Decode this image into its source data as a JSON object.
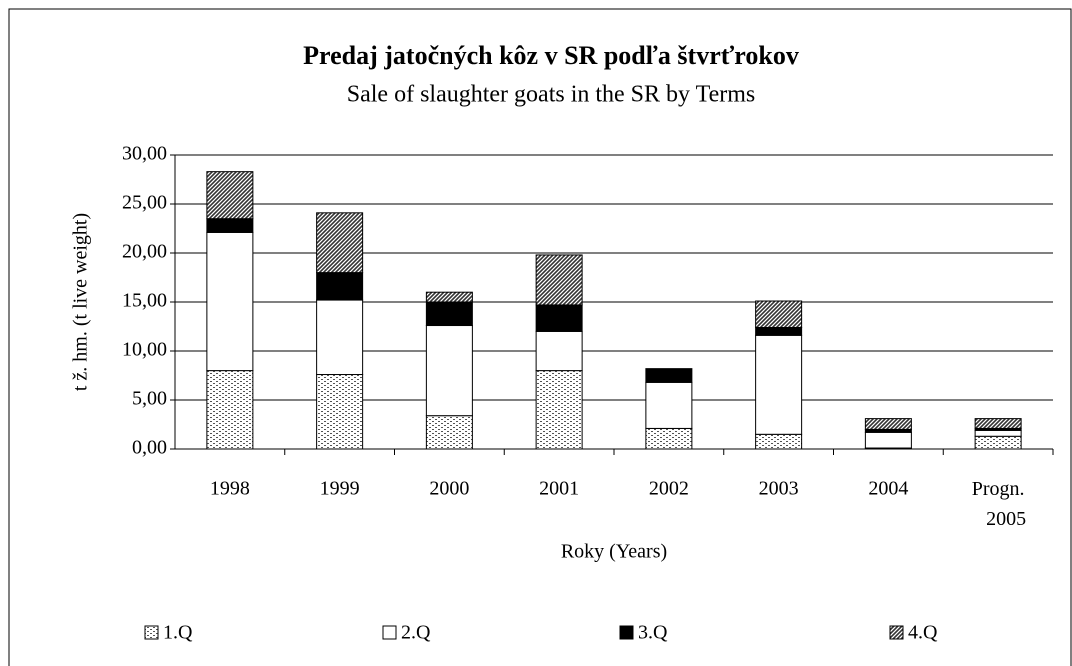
{
  "chart_data": {
    "type": "stacked_bar",
    "title": "Predaj jatočných kôz v SR podľa štvrťrokov",
    "subtitle": "Sale of slaughter goats in the SR by Terms",
    "x_label": "Roky (Years)",
    "y_label": "t ž. hm. (t live weight)",
    "categories": [
      "1998",
      "1999",
      "2000",
      "2001",
      "2002",
      "2003",
      "2004",
      "Progn. 2005"
    ],
    "series": [
      {
        "name": "1.Q",
        "color": "#ffffff",
        "pattern": "dots",
        "values": [
          8.0,
          7.6,
          3.4,
          8.0,
          2.1,
          1.5,
          0.1,
          1.3
        ]
      },
      {
        "name": "2.Q",
        "color": "#ffffff",
        "pattern": "none",
        "values": [
          14.1,
          7.6,
          9.2,
          4.0,
          4.7,
          10.1,
          1.6,
          0.6
        ]
      },
      {
        "name": "3.Q",
        "color": "#000000",
        "pattern": "none",
        "values": [
          1.4,
          2.8,
          2.4,
          2.7,
          1.4,
          0.8,
          0.3,
          0.2
        ]
      },
      {
        "name": "4.Q",
        "color": "#ffffff",
        "pattern": "hatch",
        "values": [
          4.8,
          6.1,
          1.0,
          5.1,
          0.0,
          2.7,
          1.1,
          1.0
        ]
      }
    ],
    "ylim": [
      0,
      30
    ],
    "yticks": [
      {
        "value": 0,
        "label": "0,00"
      },
      {
        "value": 5,
        "label": "5,00"
      },
      {
        "value": 10,
        "label": "10,00"
      },
      {
        "value": 15,
        "label": "15,00"
      },
      {
        "value": 20,
        "label": "20,00"
      },
      {
        "value": 25,
        "label": "25,00"
      },
      {
        "value": 30,
        "label": "30,00"
      }
    ],
    "grid": true,
    "legend": "bottom"
  }
}
